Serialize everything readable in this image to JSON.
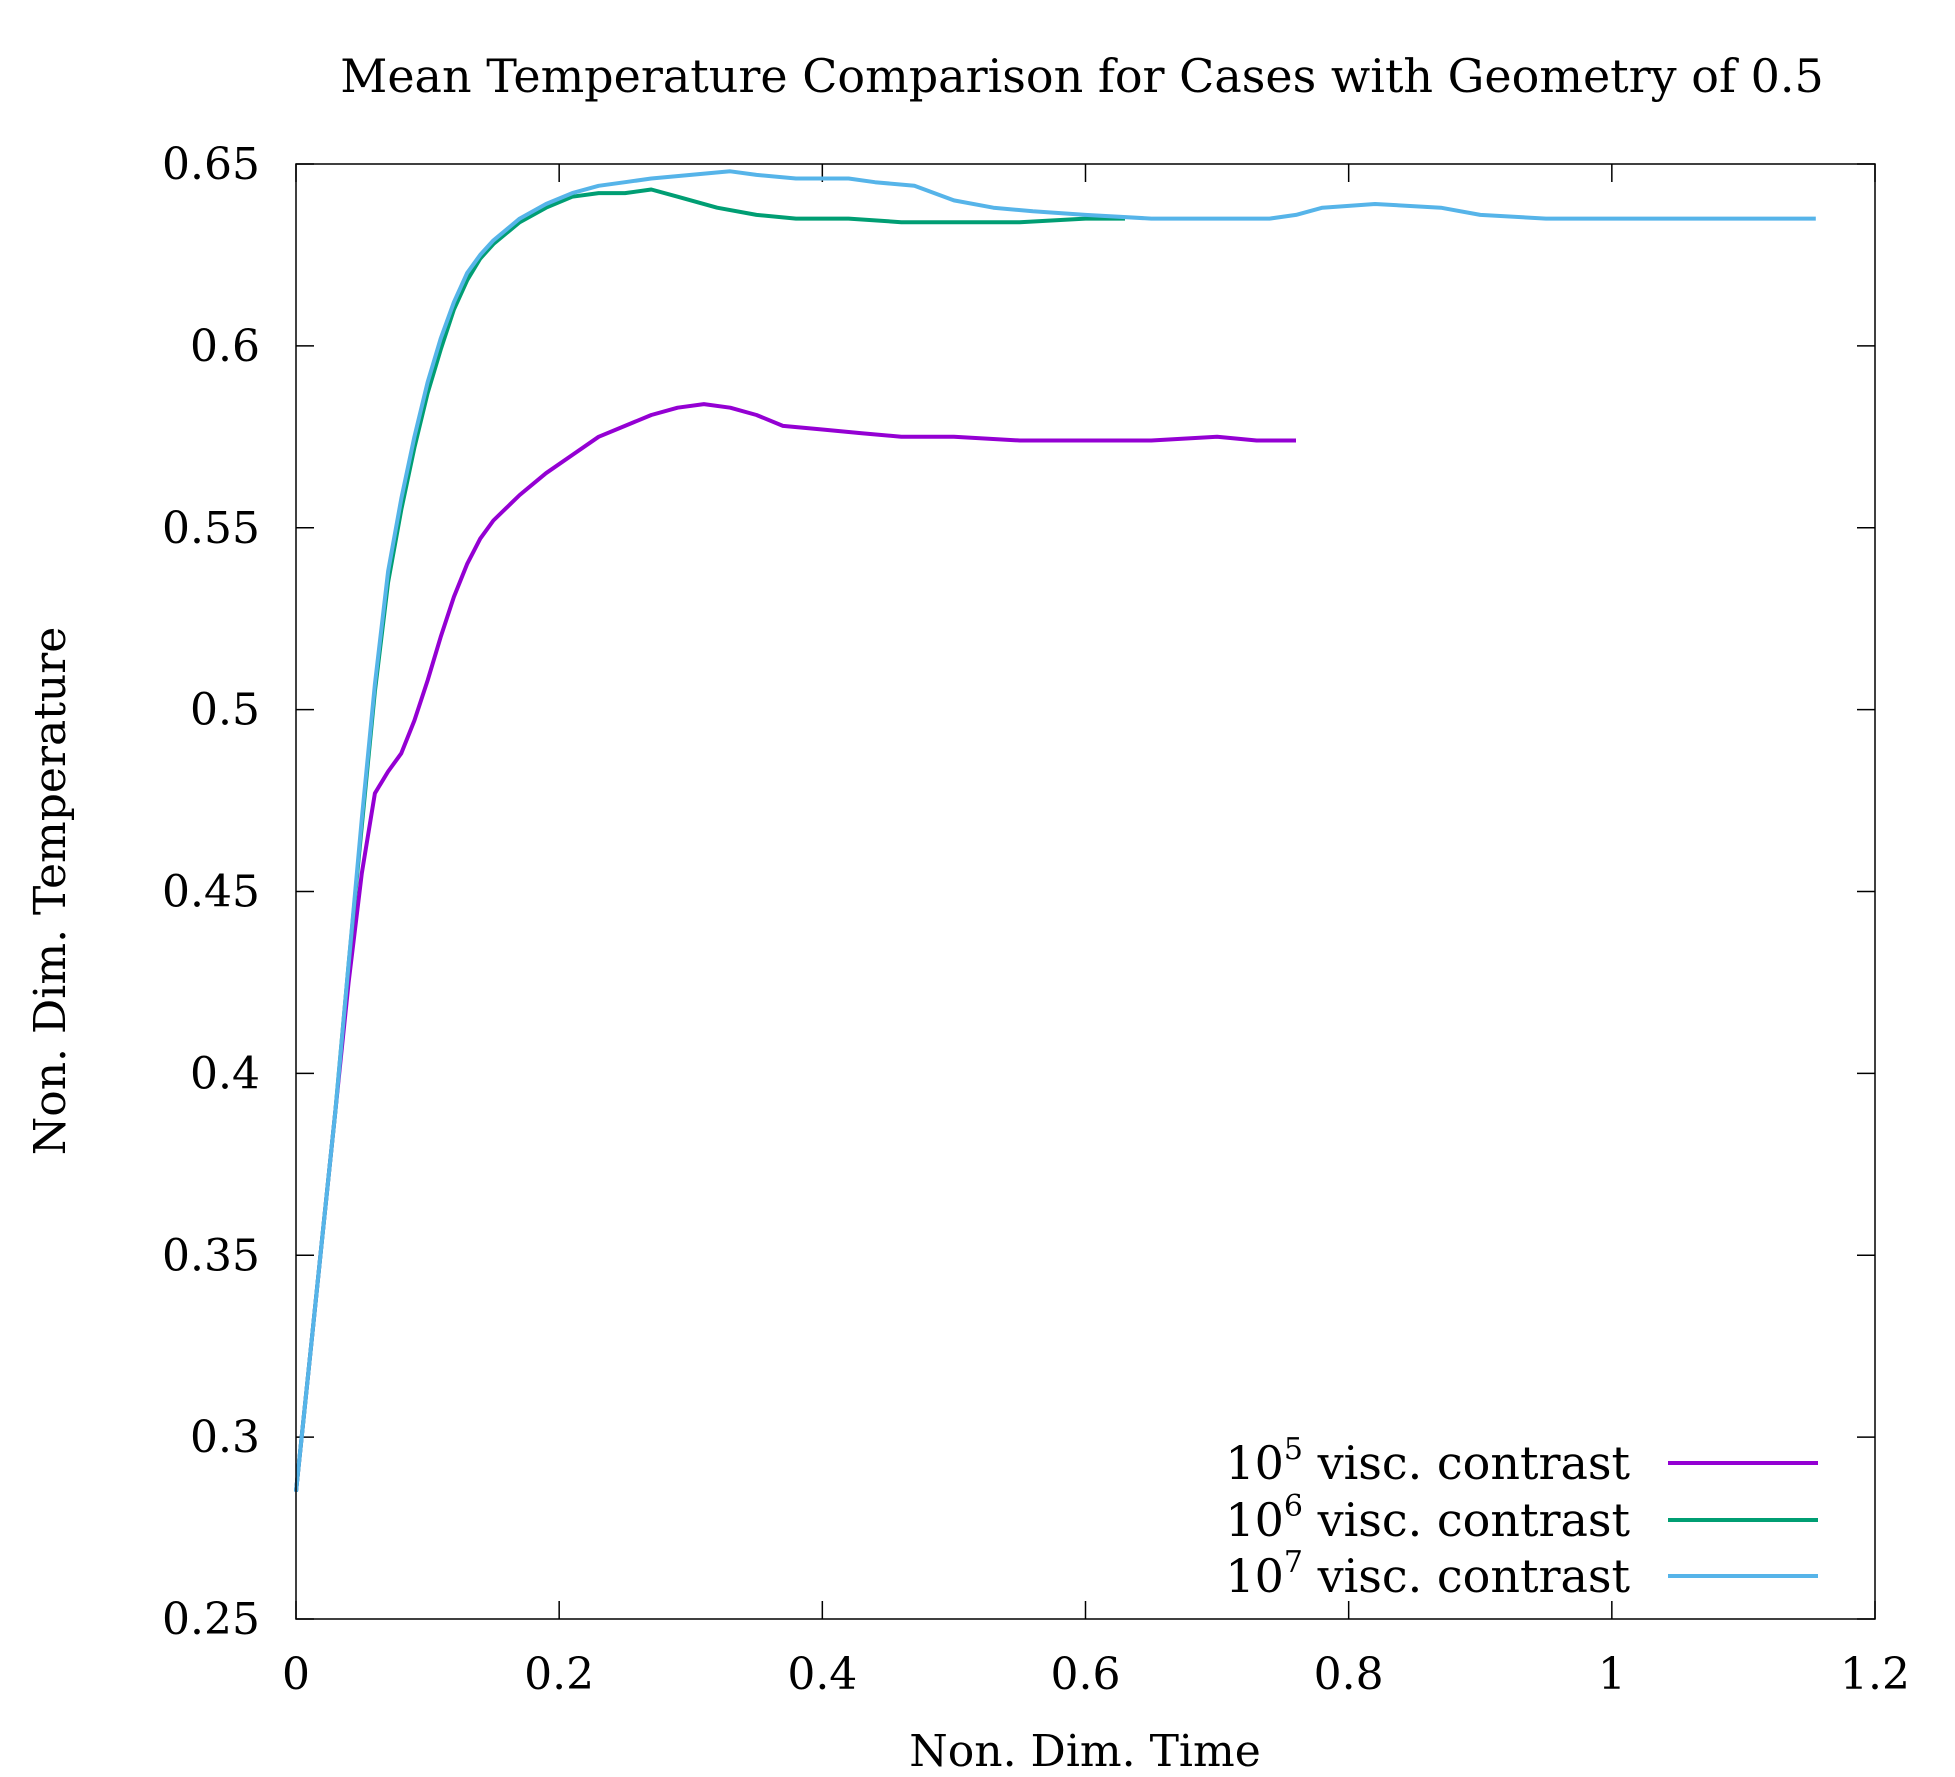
{
  "chart_data": {
    "type": "line",
    "title": "Mean Temperature Comparison for Cases with Geometry of 0.5",
    "xlabel": "Non. Dim. Time",
    "ylabel": "Non. Dim. Temperature",
    "xlim": [
      0,
      1.2
    ],
    "ylim": [
      0.25,
      0.65
    ],
    "xticks": [
      "0",
      "0.2",
      "0.4",
      "0.6",
      "0.8",
      "1",
      "1.2"
    ],
    "yticks": [
      "0.25",
      "0.3",
      "0.35",
      "0.4",
      "0.45",
      "0.5",
      "0.55",
      "0.6",
      "0.65"
    ],
    "grid": false,
    "legend_position": "bottom-right",
    "series": [
      {
        "name_base": "10",
        "name_exp": "5",
        "name_rest": " visc. contrast",
        "color": "#9400D3",
        "points": [
          [
            0.0,
            0.285
          ],
          [
            0.01,
            0.32
          ],
          [
            0.02,
            0.355
          ],
          [
            0.03,
            0.39
          ],
          [
            0.04,
            0.425
          ],
          [
            0.05,
            0.455
          ],
          [
            0.06,
            0.477
          ],
          [
            0.07,
            0.483
          ],
          [
            0.08,
            0.488
          ],
          [
            0.09,
            0.497
          ],
          [
            0.1,
            0.508
          ],
          [
            0.11,
            0.52
          ],
          [
            0.12,
            0.531
          ],
          [
            0.13,
            0.54
          ],
          [
            0.14,
            0.547
          ],
          [
            0.15,
            0.552
          ],
          [
            0.17,
            0.559
          ],
          [
            0.19,
            0.565
          ],
          [
            0.21,
            0.57
          ],
          [
            0.23,
            0.575
          ],
          [
            0.25,
            0.578
          ],
          [
            0.27,
            0.581
          ],
          [
            0.29,
            0.583
          ],
          [
            0.31,
            0.584
          ],
          [
            0.33,
            0.583
          ],
          [
            0.35,
            0.581
          ],
          [
            0.37,
            0.578
          ],
          [
            0.4,
            0.577
          ],
          [
            0.43,
            0.576
          ],
          [
            0.46,
            0.575
          ],
          [
            0.5,
            0.575
          ],
          [
            0.55,
            0.574
          ],
          [
            0.6,
            0.574
          ],
          [
            0.65,
            0.574
          ],
          [
            0.7,
            0.575
          ],
          [
            0.73,
            0.574
          ],
          [
            0.76,
            0.574
          ]
        ]
      },
      {
        "name_base": "10",
        "name_exp": "6",
        "name_rest": " visc. contrast",
        "color": "#009E73",
        "points": [
          [
            0.0,
            0.285
          ],
          [
            0.01,
            0.32
          ],
          [
            0.02,
            0.355
          ],
          [
            0.03,
            0.39
          ],
          [
            0.04,
            0.43
          ],
          [
            0.05,
            0.468
          ],
          [
            0.06,
            0.505
          ],
          [
            0.07,
            0.535
          ],
          [
            0.08,
            0.555
          ],
          [
            0.09,
            0.572
          ],
          [
            0.1,
            0.587
          ],
          [
            0.11,
            0.599
          ],
          [
            0.12,
            0.61
          ],
          [
            0.13,
            0.618
          ],
          [
            0.14,
            0.624
          ],
          [
            0.15,
            0.628
          ],
          [
            0.17,
            0.634
          ],
          [
            0.19,
            0.638
          ],
          [
            0.21,
            0.641
          ],
          [
            0.23,
            0.642
          ],
          [
            0.25,
            0.642
          ],
          [
            0.27,
            0.643
          ],
          [
            0.29,
            0.641
          ],
          [
            0.32,
            0.638
          ],
          [
            0.35,
            0.636
          ],
          [
            0.38,
            0.635
          ],
          [
            0.42,
            0.635
          ],
          [
            0.46,
            0.634
          ],
          [
            0.5,
            0.634
          ],
          [
            0.55,
            0.634
          ],
          [
            0.6,
            0.635
          ],
          [
            0.63,
            0.635
          ]
        ]
      },
      {
        "name_base": "10",
        "name_exp": "7",
        "name_rest": " visc. contrast",
        "color": "#56B4E9",
        "points": [
          [
            0.0,
            0.285
          ],
          [
            0.01,
            0.32
          ],
          [
            0.02,
            0.355
          ],
          [
            0.03,
            0.39
          ],
          [
            0.04,
            0.43
          ],
          [
            0.05,
            0.47
          ],
          [
            0.06,
            0.507
          ],
          [
            0.07,
            0.538
          ],
          [
            0.08,
            0.558
          ],
          [
            0.09,
            0.575
          ],
          [
            0.1,
            0.59
          ],
          [
            0.11,
            0.602
          ],
          [
            0.12,
            0.612
          ],
          [
            0.13,
            0.62
          ],
          [
            0.14,
            0.625
          ],
          [
            0.15,
            0.629
          ],
          [
            0.17,
            0.635
          ],
          [
            0.19,
            0.639
          ],
          [
            0.21,
            0.642
          ],
          [
            0.23,
            0.644
          ],
          [
            0.25,
            0.645
          ],
          [
            0.27,
            0.646
          ],
          [
            0.3,
            0.647
          ],
          [
            0.33,
            0.648
          ],
          [
            0.35,
            0.647
          ],
          [
            0.38,
            0.646
          ],
          [
            0.42,
            0.646
          ],
          [
            0.44,
            0.645
          ],
          [
            0.47,
            0.644
          ],
          [
            0.5,
            0.64
          ],
          [
            0.53,
            0.638
          ],
          [
            0.56,
            0.637
          ],
          [
            0.6,
            0.636
          ],
          [
            0.65,
            0.635
          ],
          [
            0.7,
            0.635
          ],
          [
            0.74,
            0.635
          ],
          [
            0.76,
            0.636
          ],
          [
            0.78,
            0.638
          ],
          [
            0.82,
            0.639
          ],
          [
            0.87,
            0.638
          ],
          [
            0.9,
            0.636
          ],
          [
            0.95,
            0.635
          ],
          [
            1.0,
            0.635
          ],
          [
            1.05,
            0.635
          ],
          [
            1.1,
            0.635
          ],
          [
            1.155,
            0.635
          ]
        ]
      }
    ]
  }
}
